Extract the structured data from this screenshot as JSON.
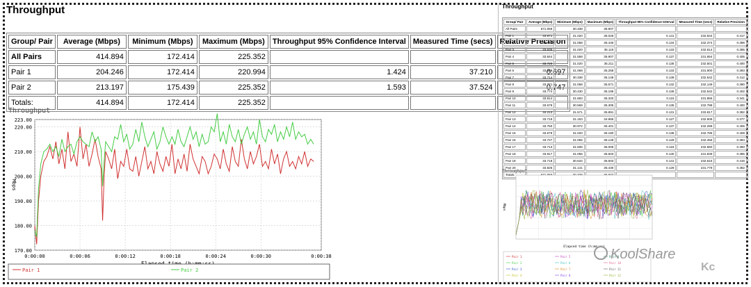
{
  "left": {
    "title": "Throughput",
    "headers": [
      "Group/ Pair",
      "Average (Mbps)",
      "Minimum (Mbps)",
      "Maximum (Mbps)",
      "Throughput 95% Confidence Interval",
      "Measured Time (secs)",
      "Relative Precision"
    ],
    "rows": [
      [
        "All Pairs",
        "414.894",
        "172.414",
        "225.352",
        "",
        "",
        ""
      ],
      [
        "Pair 1",
        "204.246",
        "172.414",
        "220.994",
        "1.424",
        "37.210",
        "0.697"
      ],
      [
        "Pair 2",
        "213.197",
        "175.439",
        "225.352",
        "1.593",
        "37.524",
        "0.747"
      ],
      [
        "Totals:",
        "414.894",
        "172.414",
        "225.352",
        "",
        "",
        ""
      ]
    ]
  },
  "right": {
    "title": "Throughput",
    "headers": [
      "Group/ Pair",
      "Average (Mbps)",
      "Minimum (Mbps)",
      "Maximum (Mbps)",
      "Throughput 95% Confidence Interval",
      "Measured Time (secs)",
      "Relative Precision"
    ],
    "rows": [
      [
        "All Pairs",
        "671.059",
        "30.338",
        "35.907",
        "",
        "",
        ""
      ],
      [
        "Pair 1",
        "33.671",
        "31.020",
        "35.026",
        "0.141",
        "232.844",
        "0.417"
      ],
      [
        "Pair 2",
        "33.739",
        "31.068",
        "35.445",
        "0.134",
        "232.374",
        "0.396"
      ],
      [
        "Pair 3",
        "33.635",
        "31.020",
        "35.119",
        "0.133",
        "232.814",
        "0.395"
      ],
      [
        "Pair 4",
        "33.844",
        "31.558",
        "35.907",
        "0.137",
        "231.654",
        "0.405"
      ],
      [
        "Pair 5",
        "33.720",
        "31.020",
        "35.211",
        "0.135",
        "232.501",
        "0.400"
      ],
      [
        "Pair 6",
        "33.808",
        "31.068",
        "35.258",
        "0.133",
        "231.900",
        "0.393"
      ],
      [
        "Pair 7",
        "33.714",
        "30.338",
        "35.149",
        "0.139",
        "232.542",
        "0.412"
      ],
      [
        "Pair 8",
        "33.771",
        "31.068",
        "35.571",
        "0.132",
        "232.149",
        "0.390"
      ],
      [
        "Pair 9",
        "33.774",
        "30.430",
        "35.196",
        "0.136",
        "232.542",
        "0.402"
      ],
      [
        "Pair 10",
        "33.814",
        "31.683",
        "35.320",
        "0.115",
        "231.856",
        "0.341"
      ],
      [
        "Pair 11",
        "33.679",
        "30.569",
        "35.305",
        "0.135",
        "232.788",
        "0.400"
      ],
      [
        "Pair 12",
        "34.213",
        "31.571",
        "35.891",
        "0.131",
        "233.817",
        "0.382"
      ],
      [
        "Pair 13",
        "33.719",
        "31.153",
        "34.965",
        "0.127",
        "232.508",
        "0.377"
      ],
      [
        "Pair 14",
        "33.750",
        "30.972",
        "35.401",
        "0.137",
        "232.299",
        "0.406"
      ],
      [
        "Pair 15",
        "33.679",
        "31.020",
        "35.180",
        "0.138",
        "232.786",
        "0.408"
      ],
      [
        "Pair 16",
        "33.727",
        "31.056",
        "35.149",
        "0.129",
        "232.456",
        "0.384"
      ],
      [
        "Pair 17",
        "33.713",
        "31.506",
        "35.006",
        "0.118",
        "232.550",
        "0.350"
      ],
      [
        "Pair 18",
        "33.817",
        "31.056",
        "35.603",
        "0.130",
        "231.839",
        "0.385"
      ],
      [
        "Pair 19",
        "33.718",
        "30.534",
        "35.603",
        "0.141",
        "232.515",
        "0.416"
      ],
      [
        "Pair 20",
        "33.825",
        "31.141",
        "35.430",
        "0.129",
        "231.779",
        "0.382"
      ],
      [
        "Totals:",
        "671.059",
        "30.338",
        "35.907",
        "",
        "",
        ""
      ]
    ]
  },
  "watermark": "KoolShare",
  "watermark_mark": "Kc",
  "chart_data": [
    {
      "type": "line",
      "title": "Throughput",
      "xlabel": "Elapsed time (h:mm:ss)",
      "ylabel": "Mbps",
      "xlim": [
        0,
        38
      ],
      "ylim": [
        170,
        223
      ],
      "xticks": [
        0,
        6,
        12,
        18,
        24,
        30,
        38
      ],
      "xtick_labels": [
        "0:00:00",
        "0:00:06",
        "0:00:12",
        "0:00:18",
        "0:00:24",
        "0:00:30",
        "0:00:38"
      ],
      "yticks": [
        170,
        180,
        190,
        200,
        210,
        220,
        223
      ],
      "ytick_labels": [
        "170.00",
        "180.00",
        "190.00",
        "200.00",
        "210.00",
        "220.00",
        "223.00"
      ],
      "grid": true,
      "legend_position": "bottom",
      "series": [
        {
          "name": "Pair 1",
          "color": "#d03030",
          "x": [
            0,
            0.25,
            0.5,
            0.8,
            1.2,
            1.6,
            2.0,
            2.4,
            2.8,
            3.2,
            3.6,
            4.0,
            4.4,
            4.8,
            5.2,
            5.6,
            6.0,
            6.4,
            6.8,
            7.2,
            7.6,
            8.0,
            8.4,
            8.8,
            9.0,
            9.2,
            9.4,
            9.8,
            10.2,
            10.6,
            11.0,
            11.4,
            11.8,
            12.2,
            12.6,
            13.0,
            13.4,
            13.8,
            14.2,
            14.6,
            15.0,
            15.4,
            15.8,
            16.2,
            16.6,
            17.0,
            17.4,
            17.8,
            18.2,
            18.6,
            19.0,
            19.4,
            19.8,
            20.2,
            20.6,
            21.0,
            21.4,
            21.8,
            22.2,
            22.6,
            23.0,
            23.4,
            23.8,
            24.2,
            24.6,
            25.0,
            25.4,
            25.8,
            26.2,
            26.6,
            27.0,
            27.4,
            27.8,
            28.2,
            28.6,
            29.0,
            29.4,
            29.8,
            30.2,
            30.6,
            31.0,
            31.4,
            31.8,
            32.2,
            32.6,
            33.0,
            33.4,
            33.8,
            34.2,
            34.6,
            35.0,
            35.4,
            35.8,
            36.2,
            36.6,
            37.0
          ],
          "y": [
            180,
            172.4,
            190,
            200,
            206,
            208,
            212,
            207,
            214,
            205,
            211,
            203,
            218,
            206,
            209,
            204,
            220,
            207,
            213,
            204,
            209,
            215,
            208,
            203,
            182,
            200,
            210,
            207,
            203,
            211,
            199,
            206,
            204,
            211,
            203,
            202,
            208,
            200,
            206,
            212,
            203,
            206,
            201,
            210,
            205,
            202,
            208,
            204,
            213,
            201,
            207,
            203,
            209,
            202,
            213,
            207,
            204,
            201,
            208,
            206,
            201,
            204,
            209,
            207,
            203,
            211,
            205,
            202,
            212,
            206,
            204,
            215,
            207,
            203,
            210,
            205,
            208,
            213,
            204,
            206,
            203,
            211,
            205,
            209,
            201,
            207,
            210,
            204,
            206,
            203,
            208,
            205,
            210,
            204,
            207,
            206
          ]
        },
        {
          "name": "Pair 2",
          "color": "#44cc44",
          "x": [
            0,
            0.25,
            0.5,
            0.8,
            1.2,
            1.6,
            2.0,
            2.4,
            2.8,
            3.2,
            3.6,
            4.0,
            4.4,
            4.8,
            5.2,
            5.6,
            6.0,
            6.4,
            6.8,
            7.2,
            7.6,
            8.0,
            8.4,
            8.8,
            9.0,
            9.2,
            9.4,
            9.8,
            10.2,
            10.6,
            11.0,
            11.4,
            11.8,
            12.2,
            12.6,
            13.0,
            13.4,
            13.8,
            14.2,
            14.6,
            15.0,
            15.4,
            15.8,
            16.2,
            16.6,
            17.0,
            17.4,
            17.8,
            18.2,
            18.6,
            19.0,
            19.4,
            19.8,
            20.2,
            20.6,
            21.0,
            21.4,
            21.8,
            22.2,
            22.6,
            23.0,
            23.4,
            23.8,
            24.2,
            24.6,
            25.0,
            25.4,
            25.8,
            26.2,
            26.6,
            27.0,
            27.4,
            27.8,
            28.2,
            28.6,
            29.0,
            29.4,
            29.8,
            30.2,
            30.6,
            31.0,
            31.4,
            31.8,
            32.2,
            32.6,
            33.0,
            33.4,
            33.8,
            34.2,
            34.6,
            35.0,
            35.4,
            35.8,
            36.2,
            36.6,
            37.0
          ],
          "y": [
            178,
            175.4,
            195,
            205,
            210,
            211,
            213,
            210,
            212,
            208,
            215,
            210,
            212,
            213,
            209,
            214,
            216,
            214,
            213,
            212,
            218,
            214,
            216,
            211,
            196,
            206,
            214,
            212,
            210,
            216,
            215,
            221,
            214,
            217,
            211,
            213,
            219,
            214,
            222,
            216,
            212,
            215,
            218,
            211,
            214,
            220,
            216,
            213,
            216,
            213,
            219,
            214,
            212,
            216,
            220,
            215,
            218,
            212,
            217,
            213,
            214,
            220,
            218,
            225.4,
            214,
            218,
            213,
            221,
            216,
            214,
            219,
            213,
            217,
            220,
            215,
            218,
            213,
            223,
            216,
            214,
            219,
            217,
            221,
            214,
            218,
            215,
            220,
            216,
            222,
            215,
            218,
            216,
            217,
            213,
            215,
            213
          ]
        }
      ]
    },
    {
      "type": "line",
      "title": "Throughput",
      "xlabel": "Elapsed time (h:mm:ss)",
      "ylabel": "Mbps",
      "legend_position": "bottom",
      "series": [
        {
          "name": "Pair 1"
        },
        {
          "name": "Pair 2"
        },
        {
          "name": "Pair 3"
        },
        {
          "name": "Pair 4"
        },
        {
          "name": "Pair 5"
        },
        {
          "name": "Pair 6"
        },
        {
          "name": "Pair 7"
        },
        {
          "name": "Pair 8"
        },
        {
          "name": "Pair 9"
        },
        {
          "name": "Pair 10"
        },
        {
          "name": "Pair 11"
        },
        {
          "name": "Pair 12"
        }
      ]
    }
  ]
}
